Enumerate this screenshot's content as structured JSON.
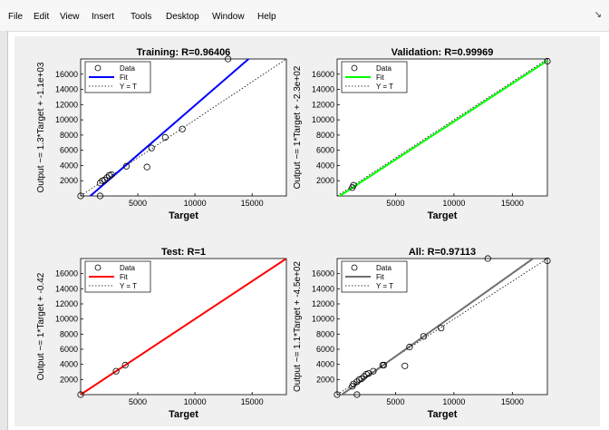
{
  "menu": [
    "File",
    "Edit",
    "View",
    "Insert",
    "Tools",
    "Desktop",
    "Window",
    "Help"
  ],
  "menu_arrow": "↘",
  "legend": [
    "Data",
    "Fit",
    "Y = T"
  ],
  "colors": {
    "training": "#0000ff",
    "validation": "#00ff00",
    "test": "#ff0000",
    "all": "#707070"
  },
  "chart_data": [
    {
      "type": "scatter",
      "title": "Training: R=0.96406",
      "xlabel": "Target",
      "ylabel": "Output ~= 1.3*Target + -1.1e+03",
      "xlim": [
        0,
        18000
      ],
      "ylim": [
        0,
        18000
      ],
      "xticks": [
        5000,
        10000,
        15000
      ],
      "yticks": [
        2000,
        4000,
        6000,
        8000,
        10000,
        12000,
        14000,
        16000
      ],
      "fit": {
        "slope": 1.3,
        "intercept": -1100
      },
      "points": [
        [
          0,
          0
        ],
        [
          1700,
          0
        ],
        [
          1700,
          1700
        ],
        [
          1900,
          2000
        ],
        [
          2100,
          2100
        ],
        [
          2300,
          2400
        ],
        [
          2500,
          2700
        ],
        [
          2700,
          2800
        ],
        [
          4000,
          3900
        ],
        [
          5800,
          3800
        ],
        [
          6200,
          6300
        ],
        [
          7400,
          7700
        ],
        [
          8900,
          8800
        ],
        [
          12900,
          18000
        ]
      ]
    },
    {
      "type": "scatter",
      "title": "Validation: R=0.99969",
      "xlabel": "Target",
      "ylabel": "Output ~= 1*Target + -2.3e+02",
      "xlim": [
        0,
        18000
      ],
      "ylim": [
        0,
        18000
      ],
      "xticks": [
        5000,
        10000,
        15000
      ],
      "yticks": [
        2000,
        4000,
        6000,
        8000,
        10000,
        12000,
        14000,
        16000
      ],
      "fit": {
        "slope": 1,
        "intercept": -230
      },
      "points": [
        [
          1300,
          1100
        ],
        [
          1400,
          1400
        ],
        [
          18000,
          17700
        ]
      ]
    },
    {
      "type": "scatter",
      "title": "Test: R=1",
      "xlabel": "Target",
      "ylabel": "Output ~= 1*Target + -0.42",
      "xlim": [
        0,
        18000
      ],
      "ylim": [
        0,
        18000
      ],
      "xticks": [
        5000,
        10000,
        15000
      ],
      "yticks": [
        2000,
        4000,
        6000,
        8000,
        10000,
        12000,
        14000,
        16000
      ],
      "fit": {
        "slope": 1,
        "intercept": -0.42
      },
      "points": [
        [
          0,
          0
        ],
        [
          3100,
          3100
        ],
        [
          3900,
          3900
        ]
      ]
    },
    {
      "type": "scatter",
      "title": "All: R=0.97113",
      "xlabel": "Target",
      "ylabel": "Output ~= 1.1*Target + -4.5e+02",
      "xlim": [
        0,
        18000
      ],
      "ylim": [
        0,
        18000
      ],
      "xticks": [
        5000,
        10000,
        15000
      ],
      "yticks": [
        2000,
        4000,
        6000,
        8000,
        10000,
        12000,
        14000,
        16000
      ],
      "fit": {
        "slope": 1.1,
        "intercept": -450
      },
      "points": [
        [
          0,
          0
        ],
        [
          1300,
          1100
        ],
        [
          1400,
          1400
        ],
        [
          1700,
          0
        ],
        [
          1700,
          1700
        ],
        [
          1900,
          2000
        ],
        [
          2100,
          2100
        ],
        [
          2300,
          2400
        ],
        [
          2500,
          2700
        ],
        [
          2700,
          2800
        ],
        [
          3100,
          3100
        ],
        [
          3900,
          3900
        ],
        [
          4000,
          3900
        ],
        [
          5800,
          3800
        ],
        [
          6200,
          6300
        ],
        [
          7400,
          7700
        ],
        [
          8900,
          8800
        ],
        [
          12900,
          18000
        ],
        [
          18000,
          17700
        ]
      ]
    }
  ]
}
